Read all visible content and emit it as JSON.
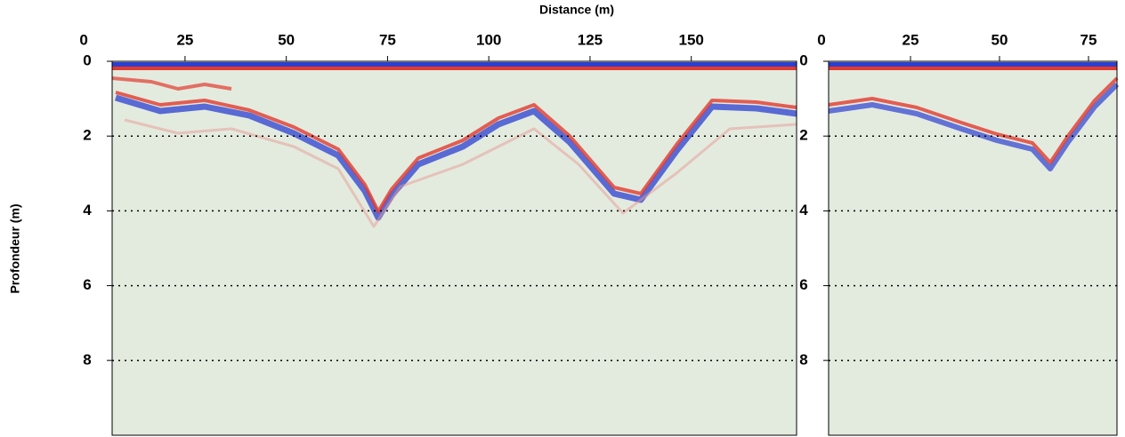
{
  "chart_data": [
    {
      "type": "radargram",
      "x_label": "Distance (m)",
      "y_label": "Profondeur (m)",
      "xlim": [
        7,
        176
      ],
      "xticks": [
        0,
        25,
        50,
        75,
        100,
        125,
        150
      ],
      "ylim": [
        0,
        10
      ],
      "yticks": [
        0,
        2,
        4,
        6,
        8
      ],
      "grid": true,
      "background": "#e3ebdf"
    },
    {
      "type": "radargram",
      "xlim": [
        2,
        83
      ],
      "xticks": [
        0,
        25,
        50,
        75
      ],
      "ylim": [
        0,
        10
      ],
      "yticks": [
        0,
        2,
        4,
        6,
        8
      ],
      "grid": true,
      "background": "#e3ebdf"
    }
  ]
}
